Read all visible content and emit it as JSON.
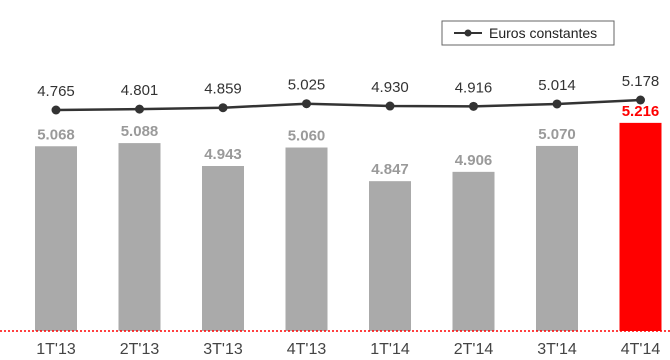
{
  "chart_data": {
    "type": "bar",
    "categories": [
      "1T'13",
      "2T'13",
      "3T'13",
      "4T'13",
      "1T'14",
      "2T'14",
      "3T'14",
      "4T'14"
    ],
    "series": [
      {
        "type": "bar",
        "values": [
          5.068,
          5.088,
          4.943,
          5.06,
          4.847,
          4.906,
          5.07,
          5.216
        ],
        "value_labels": [
          "5.068",
          "5.088",
          "4.943",
          "5.060",
          "4.847",
          "4.906",
          "5.070",
          "5.216"
        ],
        "color": "#aaaaaa",
        "highlight_color": "#ff0000",
        "highlight_index": 7
      },
      {
        "name": "Euros constantes",
        "type": "line",
        "values": [
          4.765,
          4.801,
          4.859,
          5.025,
          4.93,
          4.916,
          5.014,
          5.178
        ],
        "value_labels": [
          "4.765",
          "4.801",
          "4.859",
          "5.025",
          "4.930",
          "4.916",
          "5.014",
          "5.178"
        ],
        "color": "#333333"
      }
    ],
    "title": "",
    "xlabel": "",
    "ylabel": "",
    "grid": false,
    "baseline_color": "#ff0000",
    "legend": {
      "position": "top-right",
      "label": "Euros constantes"
    }
  }
}
